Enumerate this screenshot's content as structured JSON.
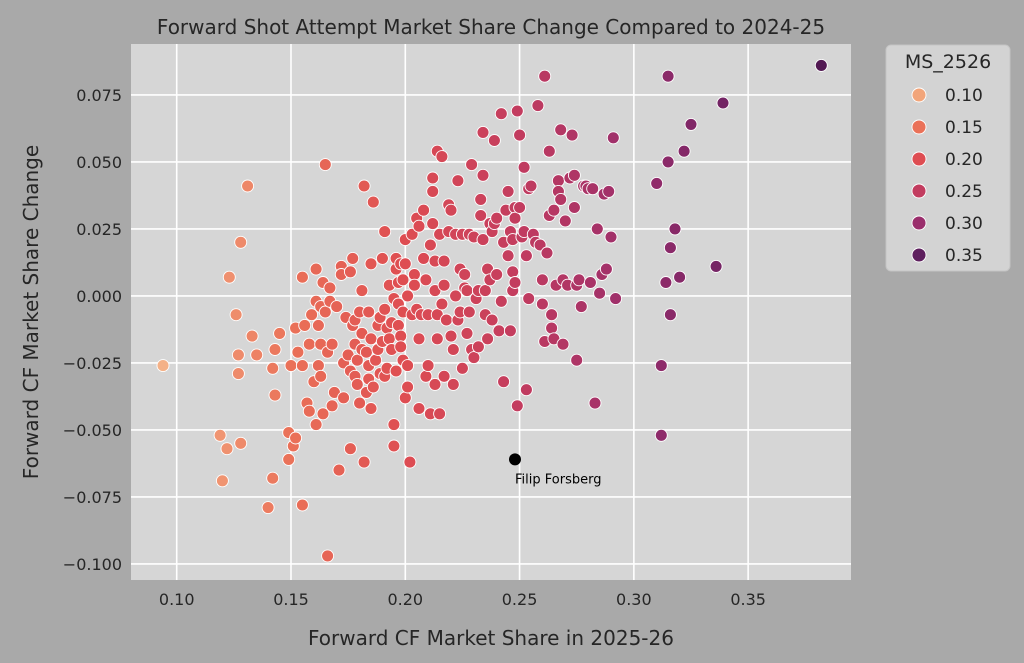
{
  "chart_data": {
    "type": "scatter",
    "title": "Forward Shot Attempt Market Share Change Compared to 2024-25",
    "xlabel": "Forward CF Market Share in 2025-26",
    "ylabel": "Forward CF Market Share Change",
    "xlim": [
      0.08,
      0.395
    ],
    "ylim": [
      -0.106,
      0.094
    ],
    "x_ticks": [
      0.1,
      0.15,
      0.2,
      0.25,
      0.3,
      0.35
    ],
    "x_tick_labels": [
      "0.10",
      "0.15",
      "0.20",
      "0.25",
      "0.30",
      "0.35"
    ],
    "y_ticks": [
      -0.1,
      -0.075,
      -0.05,
      -0.025,
      0.0,
      0.025,
      0.05,
      0.075
    ],
    "y_tick_labels": [
      "−0.100",
      "−0.075",
      "−0.050",
      "−0.025",
      "0.000",
      "0.025",
      "0.050",
      "0.075"
    ],
    "grid": true,
    "background": "#d6d6d6",
    "hue_variable": "MS_2526",
    "legend": {
      "title": "MS_2526",
      "placement": "outside upper right",
      "entries": [
        {
          "label": "0.10",
          "color": "#f2a57a"
        },
        {
          "label": "0.15",
          "color": "#ea7158"
        },
        {
          "label": "0.20",
          "color": "#de4d52"
        },
        {
          "label": "0.25",
          "color": "#c23c5f"
        },
        {
          "label": "0.30",
          "color": "#9a2e6c"
        },
        {
          "label": "0.35",
          "color": "#5e1f5e"
        }
      ]
    },
    "annotation": {
      "label": "Filip Forsberg",
      "x": 0.248,
      "y": -0.061,
      "color": "#000000"
    },
    "points": [
      [
        0.094,
        -0.026
      ],
      [
        0.119,
        -0.052
      ],
      [
        0.12,
        -0.069
      ],
      [
        0.122,
        -0.057
      ],
      [
        0.123,
        0.007
      ],
      [
        0.126,
        -0.007
      ],
      [
        0.127,
        -0.022
      ],
      [
        0.127,
        -0.029
      ],
      [
        0.128,
        -0.055
      ],
      [
        0.128,
        0.02
      ],
      [
        0.131,
        0.041
      ],
      [
        0.133,
        -0.015
      ],
      [
        0.135,
        -0.022
      ],
      [
        0.14,
        -0.079
      ],
      [
        0.142,
        -0.027
      ],
      [
        0.142,
        -0.068
      ],
      [
        0.143,
        -0.037
      ],
      [
        0.143,
        -0.02
      ],
      [
        0.145,
        -0.014
      ],
      [
        0.149,
        -0.061
      ],
      [
        0.149,
        -0.051
      ],
      [
        0.15,
        -0.026
      ],
      [
        0.151,
        -0.056
      ],
      [
        0.152,
        -0.012
      ],
      [
        0.152,
        -0.053
      ],
      [
        0.153,
        -0.021
      ],
      [
        0.155,
        -0.078
      ],
      [
        0.155,
        0.007
      ],
      [
        0.155,
        -0.026
      ],
      [
        0.156,
        -0.011
      ],
      [
        0.157,
        -0.04
      ],
      [
        0.158,
        -0.018
      ],
      [
        0.158,
        -0.043
      ],
      [
        0.159,
        -0.007
      ],
      [
        0.16,
        -0.032
      ],
      [
        0.161,
        0.01
      ],
      [
        0.161,
        -0.002
      ],
      [
        0.161,
        -0.048
      ],
      [
        0.162,
        -0.026
      ],
      [
        0.162,
        -0.011
      ],
      [
        0.163,
        -0.018
      ],
      [
        0.163,
        -0.03
      ],
      [
        0.163,
        -0.004
      ],
      [
        0.164,
        -0.044
      ],
      [
        0.164,
        0.005
      ],
      [
        0.165,
        0.049
      ],
      [
        0.165,
        -0.006
      ],
      [
        0.166,
        -0.097
      ],
      [
        0.166,
        -0.021
      ],
      [
        0.167,
        -0.002
      ],
      [
        0.167,
        0.003
      ],
      [
        0.168,
        -0.018
      ],
      [
        0.168,
        -0.041
      ],
      [
        0.169,
        -0.036
      ],
      [
        0.17,
        -0.004
      ],
      [
        0.171,
        -0.065
      ],
      [
        0.172,
        0.011
      ],
      [
        0.172,
        0.008
      ],
      [
        0.173,
        -0.025
      ],
      [
        0.173,
        -0.038
      ],
      [
        0.174,
        -0.008
      ],
      [
        0.175,
        -0.022
      ],
      [
        0.176,
        0.009
      ],
      [
        0.176,
        -0.057
      ],
      [
        0.176,
        -0.028
      ],
      [
        0.177,
        0.014
      ],
      [
        0.177,
        -0.011
      ],
      [
        0.178,
        -0.018
      ],
      [
        0.178,
        -0.03
      ],
      [
        0.178,
        -0.009
      ],
      [
        0.179,
        -0.024
      ],
      [
        0.179,
        -0.033
      ],
      [
        0.18,
        -0.04
      ],
      [
        0.18,
        -0.006
      ],
      [
        0.181,
        0.002
      ],
      [
        0.181,
        -0.014
      ],
      [
        0.181,
        -0.02
      ],
      [
        0.182,
        0.041
      ],
      [
        0.182,
        -0.062
      ],
      [
        0.183,
        -0.036
      ],
      [
        0.183,
        -0.021
      ],
      [
        0.184,
        -0.026
      ],
      [
        0.184,
        -0.006
      ],
      [
        0.184,
        -0.031
      ],
      [
        0.185,
        0.012
      ],
      [
        0.185,
        -0.016
      ],
      [
        0.185,
        -0.042
      ],
      [
        0.186,
        0.035
      ],
      [
        0.186,
        -0.034
      ],
      [
        0.187,
        -0.024
      ],
      [
        0.188,
        -0.011
      ],
      [
        0.188,
        -0.02
      ],
      [
        0.189,
        -0.008
      ],
      [
        0.189,
        -0.029
      ],
      [
        0.19,
        0.014
      ],
      [
        0.19,
        -0.017
      ],
      [
        0.191,
        0.024
      ],
      [
        0.191,
        -0.005
      ],
      [
        0.191,
        -0.03
      ],
      [
        0.192,
        -0.012
      ],
      [
        0.192,
        -0.027
      ],
      [
        0.193,
        -0.016
      ],
      [
        0.193,
        0.004
      ],
      [
        0.194,
        -0.02
      ],
      [
        0.194,
        -0.01
      ],
      [
        0.195,
        -0.001
      ],
      [
        0.195,
        -0.048
      ],
      [
        0.195,
        -0.056
      ],
      [
        0.196,
        0.01
      ],
      [
        0.196,
        0.014
      ],
      [
        0.196,
        -0.028
      ],
      [
        0.197,
        0.005
      ],
      [
        0.197,
        -0.011
      ],
      [
        0.197,
        -0.003
      ],
      [
        0.198,
        -0.015
      ],
      [
        0.198,
        0.012
      ],
      [
        0.198,
        -0.019
      ],
      [
        0.199,
        0.006
      ],
      [
        0.199,
        -0.006
      ],
      [
        0.199,
        -0.024
      ],
      [
        0.2,
        0.012
      ],
      [
        0.2,
        0.021
      ],
      [
        0.2,
        -0.038
      ],
      [
        0.201,
        -0.034
      ],
      [
        0.201,
        0.0
      ],
      [
        0.201,
        -0.026
      ],
      [
        0.202,
        -0.062
      ],
      [
        0.203,
        0.023
      ],
      [
        0.203,
        -0.007
      ],
      [
        0.204,
        0.008
      ],
      [
        0.204,
        0.004
      ],
      [
        0.205,
        -0.005
      ],
      [
        0.205,
        0.029
      ],
      [
        0.206,
        0.026
      ],
      [
        0.206,
        -0.016
      ],
      [
        0.206,
        -0.042
      ],
      [
        0.207,
        -0.007
      ],
      [
        0.208,
        0.032
      ],
      [
        0.208,
        0.014
      ],
      [
        0.209,
        -0.03
      ],
      [
        0.209,
        0.006
      ],
      [
        0.21,
        -0.007
      ],
      [
        0.21,
        -0.026
      ],
      [
        0.211,
        -0.044
      ],
      [
        0.211,
        0.019
      ],
      [
        0.212,
        0.039
      ],
      [
        0.212,
        0.027
      ],
      [
        0.212,
        0.044
      ],
      [
        0.213,
        -0.033
      ],
      [
        0.213,
        0.013
      ],
      [
        0.213,
        0.002
      ],
      [
        0.214,
        -0.007
      ],
      [
        0.214,
        -0.016
      ],
      [
        0.214,
        0.054
      ],
      [
        0.215,
        -0.044
      ],
      [
        0.215,
        0.023
      ],
      [
        0.216,
        0.052
      ],
      [
        0.216,
        -0.003
      ],
      [
        0.217,
        -0.03
      ],
      [
        0.217,
        0.004
      ],
      [
        0.217,
        0.013
      ],
      [
        0.218,
        -0.009
      ],
      [
        0.219,
        0.034
      ],
      [
        0.219,
        0.024
      ],
      [
        0.22,
        -0.015
      ],
      [
        0.22,
        0.032
      ],
      [
        0.221,
        -0.033
      ],
      [
        0.221,
        -0.02
      ],
      [
        0.222,
        0.0
      ],
      [
        0.222,
        0.023
      ],
      [
        0.223,
        -0.009
      ],
      [
        0.223,
        0.043
      ],
      [
        0.224,
        -0.006
      ],
      [
        0.224,
        0.01
      ],
      [
        0.225,
        -0.027
      ],
      [
        0.225,
        0.023
      ],
      [
        0.226,
        0.008
      ],
      [
        0.226,
        0.003
      ],
      [
        0.227,
        -0.014
      ],
      [
        0.227,
        0.002
      ],
      [
        0.228,
        -0.006
      ],
      [
        0.228,
        0.023
      ],
      [
        0.229,
        0.049
      ],
      [
        0.229,
        -0.02
      ],
      [
        0.23,
        0.022
      ],
      [
        0.23,
        -0.023
      ],
      [
        0.231,
        -0.001
      ],
      [
        0.232,
        0.002
      ],
      [
        0.232,
        -0.019
      ],
      [
        0.233,
        0.03
      ],
      [
        0.233,
        0.036
      ],
      [
        0.234,
        0.021
      ],
      [
        0.234,
        0.045
      ],
      [
        0.234,
        0.061
      ],
      [
        0.235,
        -0.007
      ],
      [
        0.235,
        0.002
      ],
      [
        0.236,
        0.01
      ],
      [
        0.236,
        -0.016
      ],
      [
        0.237,
        0.006
      ],
      [
        0.237,
        0.027
      ],
      [
        0.238,
        0.024
      ],
      [
        0.238,
        -0.009
      ],
      [
        0.239,
        0.058
      ],
      [
        0.239,
        0.027
      ],
      [
        0.24,
        0.029
      ],
      [
        0.24,
        0.008
      ],
      [
        0.241,
        -0.013
      ],
      [
        0.242,
        0.068
      ],
      [
        0.242,
        -0.002
      ],
      [
        0.243,
        0.02
      ],
      [
        0.243,
        -0.032
      ],
      [
        0.244,
        0.032
      ],
      [
        0.245,
        0.039
      ],
      [
        0.245,
        0.015
      ],
      [
        0.246,
        0.024
      ],
      [
        0.246,
        -0.013
      ],
      [
        0.247,
        0.002
      ],
      [
        0.247,
        0.009
      ],
      [
        0.247,
        0.021
      ],
      [
        0.248,
        0.033
      ],
      [
        0.248,
        0.029
      ],
      [
        0.248,
        0.005
      ],
      [
        0.249,
        0.069
      ],
      [
        0.249,
        -0.041
      ],
      [
        0.25,
        0.06
      ],
      [
        0.25,
        0.033
      ],
      [
        0.251,
        0.022
      ],
      [
        0.252,
        0.024
      ],
      [
        0.252,
        0.048
      ],
      [
        0.253,
        -0.035
      ],
      [
        0.253,
        0.015
      ],
      [
        0.254,
        -0.001
      ],
      [
        0.254,
        0.04
      ],
      [
        0.255,
        0.041
      ],
      [
        0.256,
        0.023
      ],
      [
        0.257,
        0.02
      ],
      [
        0.258,
        0.071
      ],
      [
        0.259,
        0.019
      ],
      [
        0.26,
        -0.003
      ],
      [
        0.26,
        0.006
      ],
      [
        0.261,
        -0.017
      ],
      [
        0.261,
        0.082
      ],
      [
        0.262,
        0.016
      ],
      [
        0.263,
        0.054
      ],
      [
        0.263,
        0.03
      ],
      [
        0.264,
        -0.012
      ],
      [
        0.264,
        -0.007
      ],
      [
        0.265,
        0.032
      ],
      [
        0.265,
        -0.016
      ],
      [
        0.266,
        0.004
      ],
      [
        0.267,
        0.043
      ],
      [
        0.267,
        0.039
      ],
      [
        0.268,
        0.062
      ],
      [
        0.268,
        0.036
      ],
      [
        0.269,
        -0.018
      ],
      [
        0.269,
        0.006
      ],
      [
        0.27,
        0.028
      ],
      [
        0.271,
        0.004
      ],
      [
        0.272,
        0.044
      ],
      [
        0.273,
        0.06
      ],
      [
        0.274,
        0.033
      ],
      [
        0.274,
        0.045
      ],
      [
        0.275,
        -0.024
      ],
      [
        0.275,
        0.004
      ],
      [
        0.276,
        0.006
      ],
      [
        0.277,
        -0.004
      ],
      [
        0.278,
        0.041
      ],
      [
        0.279,
        0.041
      ],
      [
        0.28,
        0.04
      ],
      [
        0.281,
        0.005
      ],
      [
        0.282,
        0.04
      ],
      [
        0.283,
        -0.04
      ],
      [
        0.284,
        0.025
      ],
      [
        0.285,
        0.001
      ],
      [
        0.286,
        0.008
      ],
      [
        0.287,
        0.038
      ],
      [
        0.288,
        0.01
      ],
      [
        0.289,
        0.039
      ],
      [
        0.29,
        0.022
      ],
      [
        0.291,
        0.059
      ],
      [
        0.292,
        -0.001
      ],
      [
        0.31,
        0.042
      ],
      [
        0.312,
        -0.052
      ],
      [
        0.312,
        -0.026
      ],
      [
        0.314,
        0.005
      ],
      [
        0.315,
        0.05
      ],
      [
        0.315,
        0.082
      ],
      [
        0.316,
        0.018
      ],
      [
        0.316,
        -0.007
      ],
      [
        0.318,
        0.025
      ],
      [
        0.32,
        0.007
      ],
      [
        0.322,
        0.054
      ],
      [
        0.325,
        0.064
      ],
      [
        0.336,
        0.011
      ],
      [
        0.339,
        0.072
      ],
      [
        0.382,
        0.086
      ]
    ]
  }
}
